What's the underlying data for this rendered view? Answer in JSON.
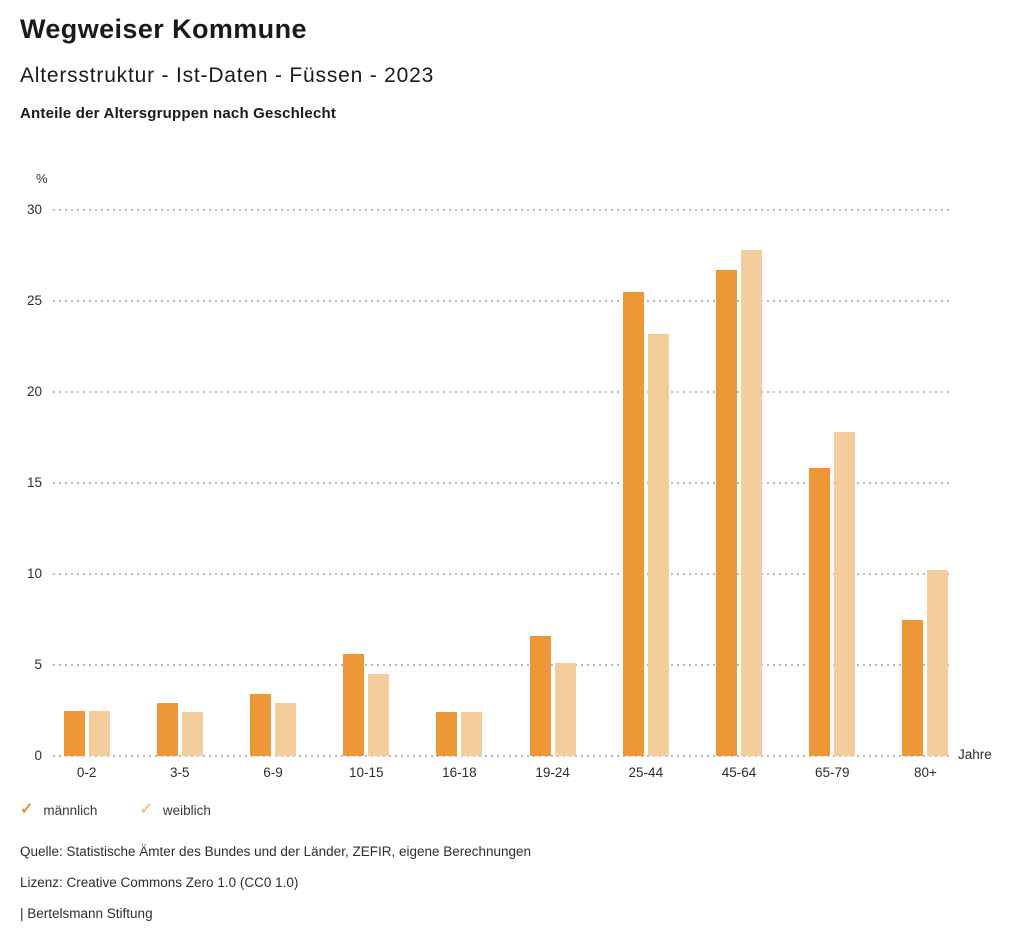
{
  "header": {
    "title": "Wegweiser Kommune",
    "subtitle": "Altersstruktur - Ist-Daten - Füssen - 2023",
    "chart_heading": "Anteile der Altersgruppen nach Geschlecht"
  },
  "chart_data": {
    "type": "bar",
    "title": "Anteile der Altersgruppen nach Geschlecht",
    "categories": [
      "0-2",
      "3-5",
      "6-9",
      "10-15",
      "16-18",
      "19-24",
      "25-44",
      "45-64",
      "65-79",
      "80+"
    ],
    "series": [
      {
        "name": "männlich",
        "color": "#EC9839",
        "values": [
          2.5,
          2.9,
          3.4,
          5.6,
          2.4,
          6.6,
          25.5,
          26.7,
          15.8,
          7.5
        ]
      },
      {
        "name": "weiblich",
        "color": "#F5CC9B",
        "values": [
          2.5,
          2.4,
          2.9,
          4.5,
          2.4,
          5.1,
          23.2,
          27.8,
          17.8,
          10.2
        ]
      }
    ],
    "xlabel": "Jahre",
    "ylabel": "%",
    "ylim": [
      0,
      30
    ],
    "yticks": [
      0,
      5,
      10,
      15,
      20,
      25,
      30
    ],
    "grid": true,
    "gridline_color": "#b9b9b9",
    "legend_position": "bottom-left"
  },
  "legend": {
    "check_icon": "✓",
    "items": [
      {
        "label": "männlich",
        "color": "#E8912C",
        "checked": true
      },
      {
        "label": "weiblich",
        "color": "#F2C48F",
        "checked": true
      }
    ]
  },
  "footer": {
    "source": "Quelle: Statistische Ämter des Bundes und der Länder, ZEFIR, eigene Berechnungen",
    "license": "Lizenz: Creative Commons Zero 1.0 (CC0 1.0)",
    "attribution": "| Bertelsmann Stiftung"
  }
}
